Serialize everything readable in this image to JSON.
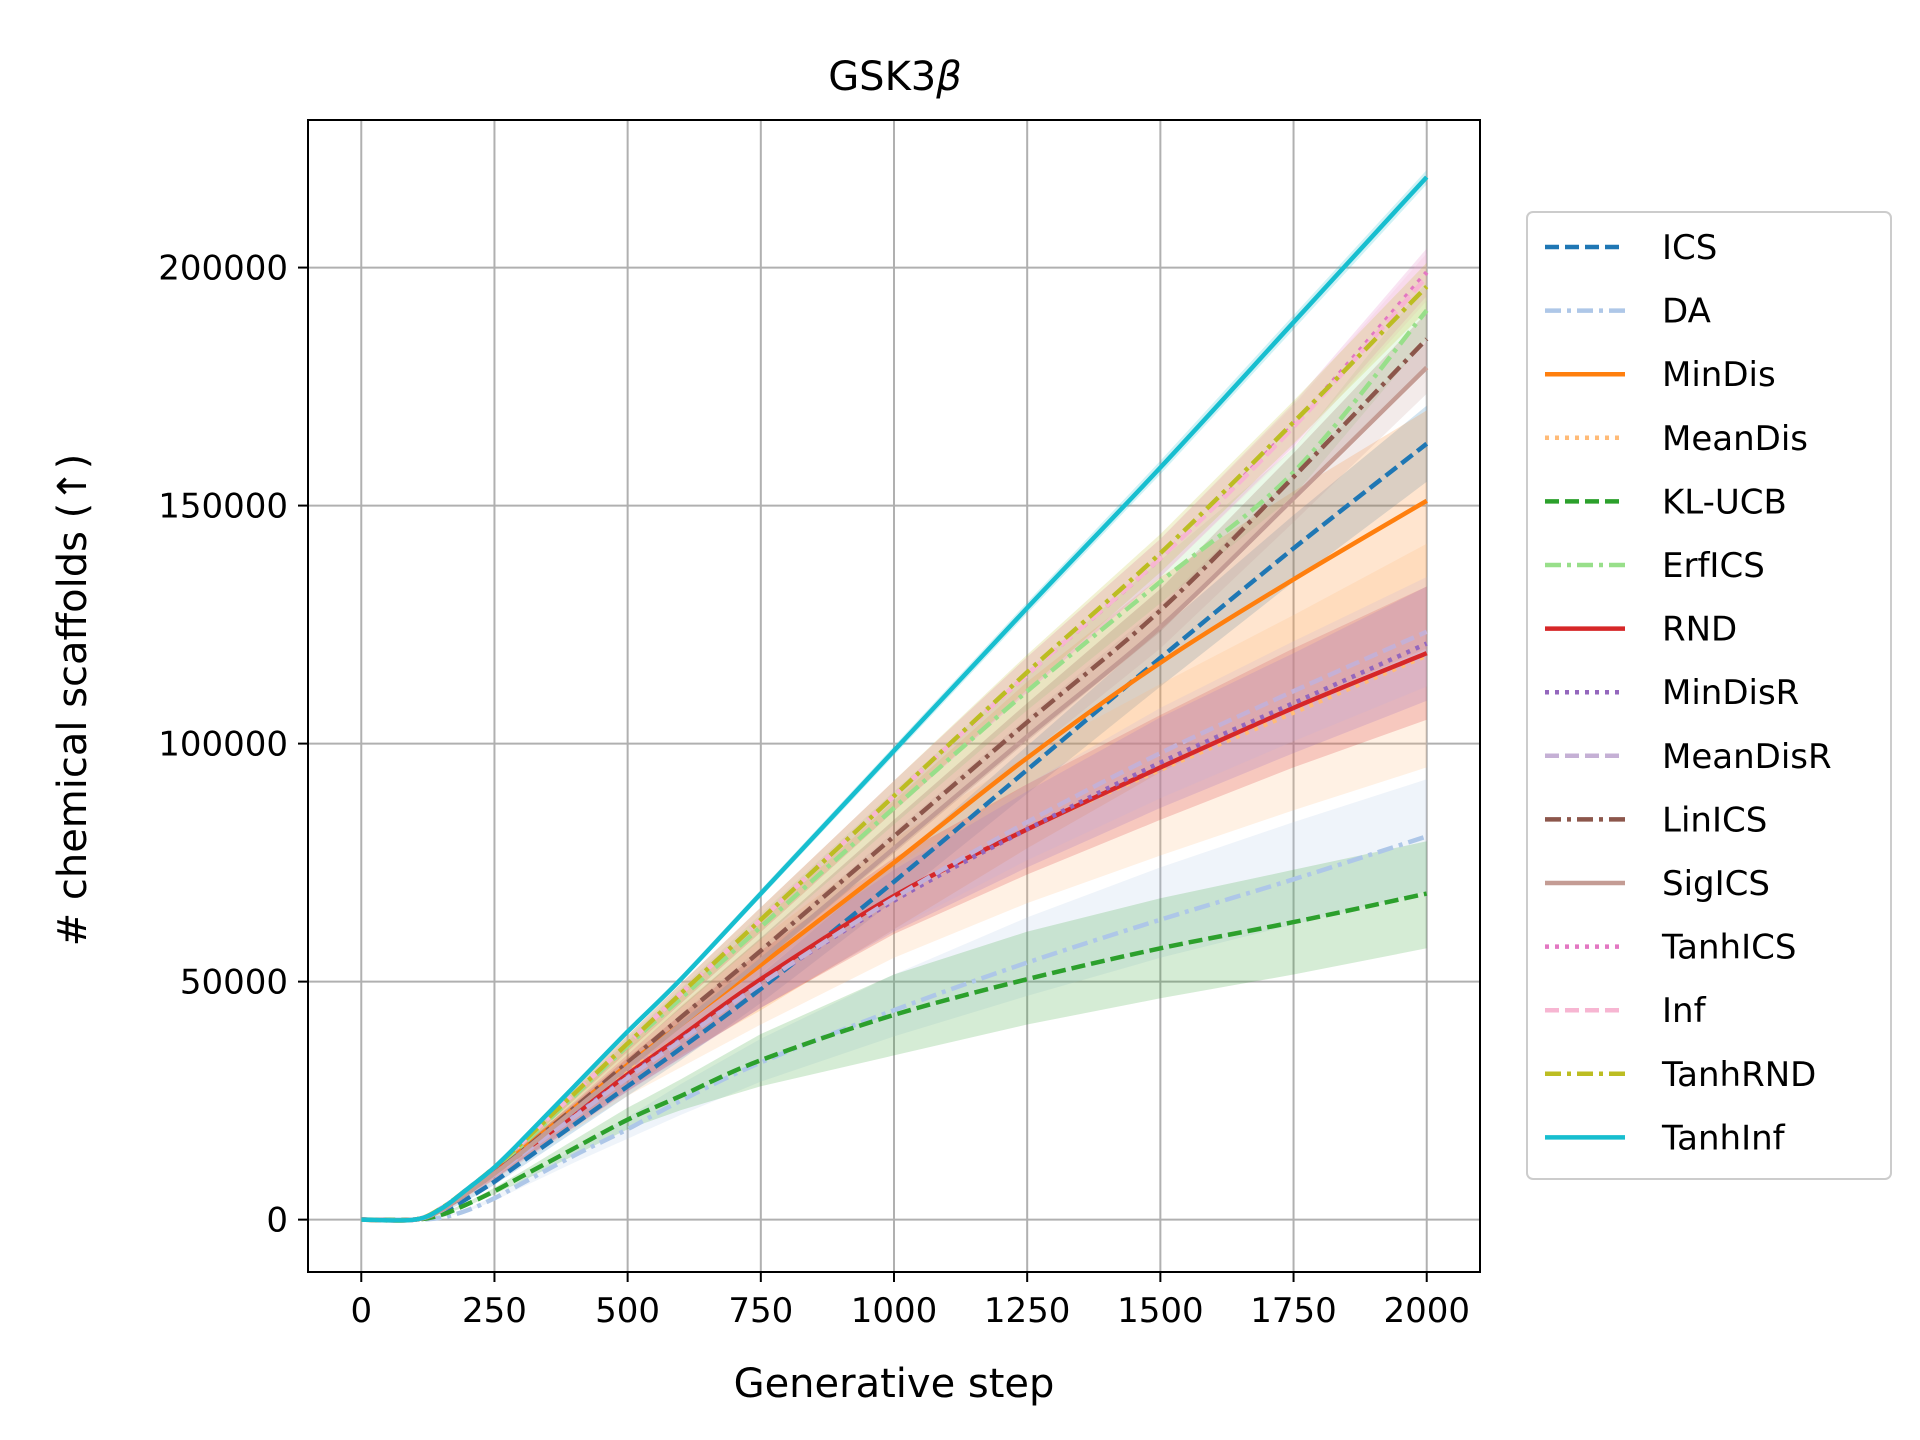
{
  "chart_data": {
    "type": "line",
    "title": "GSK3β",
    "title_main": "GSK3",
    "title_greek": "β",
    "xlabel": "Generative step",
    "ylabel": "# chemical scaffolds (↑)",
    "xlim": [
      -100,
      2100
    ],
    "ylim": [
      -11000,
      231000
    ],
    "xticks": [
      0,
      250,
      500,
      750,
      1000,
      1250,
      1500,
      1750,
      2000
    ],
    "xtick_labels": [
      "0",
      "250",
      "500",
      "750",
      "1000",
      "1250",
      "1500",
      "1750",
      "2000"
    ],
    "yticks": [
      0,
      50000,
      100000,
      150000,
      200000
    ],
    "ytick_labels": [
      "0",
      "50000",
      "100000",
      "150000",
      "200000"
    ],
    "grid": true,
    "legend_position": "right-outside",
    "x": [
      0,
      100,
      150,
      200,
      250,
      300,
      400,
      500,
      600,
      750,
      1000,
      1250,
      1500,
      1750,
      2000
    ],
    "series": [
      {
        "name": "ICS",
        "color": "#1f77b4",
        "dash": "dashed",
        "values": [
          0,
          0,
          1500,
          4500,
          8000,
          12000,
          20000,
          28000,
          36000,
          48500,
          71000,
          94500,
          118000,
          141000,
          163000
        ],
        "lower": [
          0,
          0,
          1300,
          4100,
          7300,
          11000,
          18500,
          26000,
          33500,
          45500,
          67000,
          89500,
          112000,
          134000,
          155000
        ],
        "upper": [
          0,
          0,
          1700,
          4900,
          8700,
          13000,
          21500,
          30000,
          38500,
          51500,
          75000,
          99500,
          124000,
          148000,
          171000
        ]
      },
      {
        "name": "DA",
        "color": "#aec7e8",
        "dash": "dashdot",
        "values": [
          0,
          0,
          400,
          2000,
          4500,
          7500,
          13500,
          19000,
          25000,
          33000,
          44000,
          54000,
          63000,
          71500,
          80500
        ],
        "lower": [
          0,
          0,
          300,
          1700,
          4000,
          6700,
          12000,
          17000,
          22000,
          29000,
          38500,
          47000,
          55000,
          62000,
          69000
        ],
        "upper": [
          0,
          0,
          500,
          2300,
          5000,
          8300,
          15000,
          21500,
          28500,
          38000,
          51500,
          63500,
          74000,
          83500,
          92500
        ]
      },
      {
        "name": "MinDis",
        "color": "#ff7f0e",
        "dash": "solid",
        "values": [
          0,
          0,
          2200,
          6000,
          10000,
          14500,
          23500,
          32500,
          41000,
          53500,
          75000,
          97000,
          117000,
          134500,
          151000
        ],
        "lower": [
          0,
          0,
          1800,
          5000,
          8500,
          12500,
          20000,
          27500,
          34500,
          44000,
          61000,
          78000,
          94000,
          108000,
          120000
        ],
        "upper": [
          0,
          0,
          2600,
          7000,
          11500,
          16500,
          27000,
          37500,
          47500,
          62500,
          88000,
          113000,
          135000,
          153000,
          170000
        ]
      },
      {
        "name": "MeanDis",
        "color": "#ffbb78",
        "dash": "dotted",
        "values": [
          0,
          0,
          2000,
          5800,
          9800,
          14000,
          22500,
          31000,
          38500,
          50000,
          67500,
          82000,
          94500,
          106500,
          118500
        ],
        "lower": [
          0,
          0,
          1600,
          4900,
          8300,
          12000,
          19000,
          26000,
          32000,
          41000,
          55000,
          66500,
          76500,
          86000,
          95000
        ],
        "upper": [
          0,
          0,
          2400,
          6700,
          11300,
          16000,
          26000,
          36000,
          45000,
          59000,
          80000,
          97500,
          112500,
          127000,
          142000
        ]
      },
      {
        "name": "KL-UCB",
        "color": "#2ca02c",
        "dash": "dashed",
        "values": [
          0,
          0,
          1000,
          3300,
          6000,
          9000,
          15000,
          21000,
          26000,
          33500,
          43000,
          50500,
          57000,
          62500,
          68500
        ],
        "lower": [
          0,
          0,
          800,
          2900,
          5300,
          8000,
          13500,
          19000,
          23000,
          28000,
          34500,
          41000,
          46500,
          51500,
          57000
        ],
        "upper": [
          0,
          0,
          1200,
          3700,
          6700,
          10000,
          16800,
          23500,
          29500,
          39000,
          51500,
          60500,
          67500,
          73500,
          79500
        ]
      },
      {
        "name": "ErfICS",
        "color": "#98df8a",
        "dash": "dashdot",
        "values": [
          0,
          0,
          2300,
          6300,
          10600,
          15500,
          26000,
          36500,
          46500,
          61500,
          86500,
          111000,
          134000,
          157000,
          191000
        ],
        "lower": [
          0,
          0,
          2100,
          5900,
          10000,
          14600,
          24700,
          34800,
          44400,
          58800,
          83000,
          107000,
          129500,
          152000,
          185000
        ],
        "upper": [
          0,
          0,
          2500,
          6700,
          11200,
          16400,
          27300,
          38200,
          48600,
          64200,
          90000,
          115000,
          138500,
          162000,
          197000
        ]
      },
      {
        "name": "RND",
        "color": "#d62728",
        "dash": "solid",
        "values": [
          0,
          0,
          2000,
          5800,
          9800,
          14000,
          22000,
          30500,
          38500,
          50500,
          68000,
          82000,
          95000,
          107500,
          119000
        ],
        "lower": [
          0,
          0,
          1700,
          5100,
          8700,
          12500,
          19500,
          27000,
          34000,
          44500,
          60000,
          72500,
          84000,
          95000,
          105000
        ],
        "upper": [
          0,
          0,
          2300,
          6500,
          10900,
          15500,
          24500,
          34000,
          43000,
          56500,
          76000,
          91500,
          106000,
          120000,
          133000
        ]
      },
      {
        "name": "MinDisR",
        "color": "#9467bd",
        "dash": "dotted",
        "values": [
          0,
          0,
          2000,
          5700,
          9600,
          13800,
          21800,
          30000,
          37800,
          49500,
          67000,
          82000,
          96000,
          108500,
          121000
        ],
        "lower": [
          0,
          0,
          1700,
          5000,
          8500,
          12300,
          19500,
          27000,
          34000,
          44500,
          60500,
          74000,
          86500,
          98000,
          109000
        ],
        "upper": [
          0,
          0,
          2300,
          6400,
          10700,
          15300,
          24100,
          33000,
          41600,
          54500,
          73500,
          90000,
          105500,
          119000,
          133000
        ]
      },
      {
        "name": "MeanDisR",
        "color": "#c5b0d5",
        "dash": "dashed",
        "values": [
          0,
          0,
          1900,
          5600,
          9500,
          13600,
          21600,
          29800,
          37600,
          49500,
          67500,
          83500,
          98000,
          111000,
          123500
        ],
        "lower": [
          0,
          0,
          1600,
          4900,
          8400,
          12100,
          19300,
          26800,
          33800,
          44500,
          61000,
          75500,
          88500,
          100500,
          112000
        ],
        "upper": [
          0,
          0,
          2200,
          6300,
          10600,
          15100,
          23900,
          32800,
          41400,
          54500,
          74000,
          91500,
          107500,
          121500,
          135000
        ]
      },
      {
        "name": "LinICS",
        "color": "#8c564b",
        "dash": "dashdot",
        "values": [
          0,
          0,
          2000,
          5700,
          9800,
          14200,
          23500,
          33000,
          42500,
          56500,
          80500,
          104500,
          128000,
          156000,
          185000
        ],
        "lower": [
          0,
          0,
          1800,
          5300,
          9200,
          13300,
          22200,
          31300,
          40300,
          53800,
          77000,
          100500,
          123500,
          151000,
          179500
        ],
        "upper": [
          0,
          0,
          2200,
          6100,
          10400,
          15100,
          24800,
          34700,
          44700,
          59200,
          84000,
          108500,
          132500,
          161000,
          190500
        ]
      },
      {
        "name": "SigICS",
        "color": "#c49c94",
        "dash": "solid",
        "values": [
          0,
          0,
          2000,
          5700,
          9700,
          14000,
          23000,
          32000,
          41000,
          54500,
          78000,
          101500,
          124500,
          151500,
          179000
        ],
        "lower": [
          0,
          0,
          1800,
          5300,
          9100,
          13100,
          21700,
          30300,
          38800,
          51800,
          74500,
          97500,
          120000,
          146500,
          173500
        ],
        "upper": [
          0,
          0,
          2200,
          6100,
          10300,
          14900,
          24300,
          33700,
          43200,
          57200,
          81500,
          105500,
          129000,
          156500,
          184500
        ]
      },
      {
        "name": "TanhICS",
        "color": "#e377c2",
        "dash": "dotted",
        "values": [
          0,
          0,
          2400,
          6500,
          11000,
          16000,
          26500,
          37000,
          47500,
          63000,
          89000,
          114500,
          139000,
          167000,
          199000
        ],
        "lower": [
          0,
          0,
          2200,
          6100,
          10400,
          15100,
          25200,
          35300,
          45400,
          60400,
          85800,
          110800,
          135000,
          162500,
          194000
        ],
        "upper": [
          0,
          0,
          2600,
          6900,
          11600,
          16900,
          27800,
          38700,
          49600,
          65600,
          92200,
          118200,
          143000,
          171500,
          204000
        ]
      },
      {
        "name": "Inf",
        "color": "#f7b6d2",
        "dash": "dashed",
        "values": [
          0,
          0,
          2400,
          6500,
          11000,
          16000,
          26500,
          37000,
          47500,
          63000,
          89000,
          114500,
          139000,
          166500,
          198000
        ],
        "lower": [
          0,
          0,
          2200,
          6100,
          10400,
          15100,
          25200,
          35300,
          45400,
          60400,
          85800,
          110800,
          135000,
          162000,
          193000
        ],
        "upper": [
          0,
          0,
          2600,
          6900,
          11600,
          16900,
          27800,
          38700,
          49600,
          65600,
          92200,
          118200,
          143000,
          171000,
          203000
        ]
      },
      {
        "name": "TanhRND",
        "color": "#bcbd22",
        "dash": "dashdot",
        "values": [
          0,
          0,
          2400,
          6500,
          11000,
          16000,
          26500,
          37000,
          47500,
          63000,
          89000,
          115000,
          140000,
          167500,
          196000
        ],
        "lower": [
          0,
          0,
          2200,
          6100,
          10400,
          15100,
          25200,
          35300,
          45400,
          60400,
          85800,
          111300,
          136000,
          163000,
          191000
        ],
        "upper": [
          0,
          0,
          2600,
          6900,
          11600,
          16900,
          27800,
          38700,
          49600,
          65600,
          92200,
          118700,
          144000,
          172000,
          201000
        ]
      },
      {
        "name": "TanhInf",
        "color": "#17becf",
        "dash": "solid",
        "values": [
          0,
          0,
          2300,
          6500,
          11000,
          16500,
          28000,
          39500,
          50500,
          68500,
          98500,
          128500,
          158000,
          188500,
          219000
        ],
        "lower": [
          0,
          0,
          2200,
          6300,
          10700,
          16100,
          27500,
          38900,
          49800,
          67700,
          97500,
          127300,
          156600,
          187000,
          217500
        ],
        "upper": [
          0,
          0,
          2400,
          6700,
          11300,
          16900,
          28500,
          40100,
          51200,
          69300,
          99500,
          129700,
          159400,
          190000,
          220500
        ]
      }
    ]
  }
}
